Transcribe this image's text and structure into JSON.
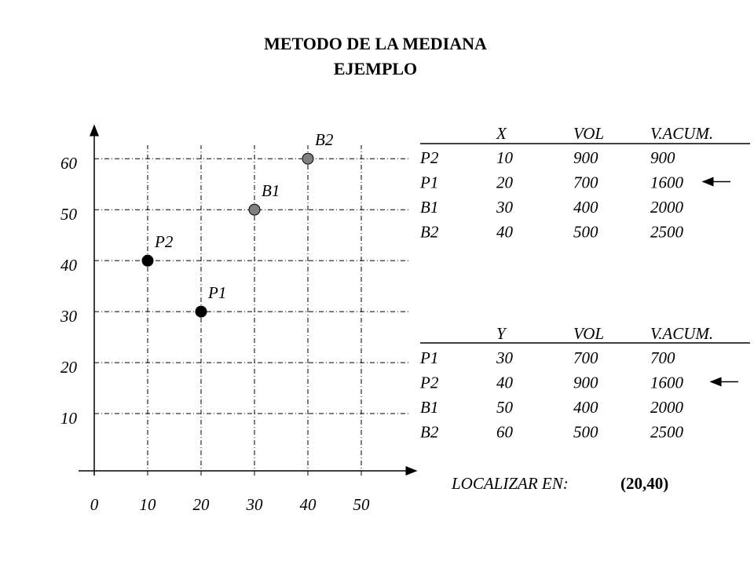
{
  "header": {
    "title": "METODO  DE LA MEDIANA",
    "subtitle": "EJEMPLO"
  },
  "chart_data": {
    "type": "scatter",
    "x": [
      10,
      20,
      30,
      40
    ],
    "values": [
      40,
      30,
      50,
      60
    ],
    "point_labels": [
      "P2",
      "P1",
      "B1",
      "B2"
    ],
    "colors": [
      "#000000",
      "#000000",
      "#808080",
      "#808080"
    ],
    "xlim": [
      0,
      60
    ],
    "ylim": [
      0,
      66.5
    ],
    "xticks": [
      0,
      10,
      20,
      30,
      40,
      50
    ],
    "yticks": [
      10,
      20,
      30,
      40,
      50,
      60
    ],
    "grid": true
  },
  "tables": [
    {
      "columns": [
        "X",
        "VOL",
        "V.ACUM."
      ],
      "rows": [
        [
          "P2",
          10,
          900,
          900
        ],
        [
          "P1",
          20,
          700,
          1600
        ],
        [
          "B1",
          30,
          400,
          2000
        ],
        [
          "B2",
          40,
          500,
          2500
        ]
      ],
      "marked_row": 1
    },
    {
      "columns": [
        "Y",
        "VOL",
        "V.ACUM."
      ],
      "rows": [
        [
          "P1",
          30,
          700,
          700
        ],
        [
          "P2",
          40,
          900,
          1600
        ],
        [
          "B1",
          50,
          400,
          2000
        ],
        [
          "B2",
          60,
          500,
          2500
        ]
      ],
      "marked_row": 1
    }
  ],
  "result": {
    "label": "LOCALIZAR EN:",
    "value": "(20,40)"
  }
}
